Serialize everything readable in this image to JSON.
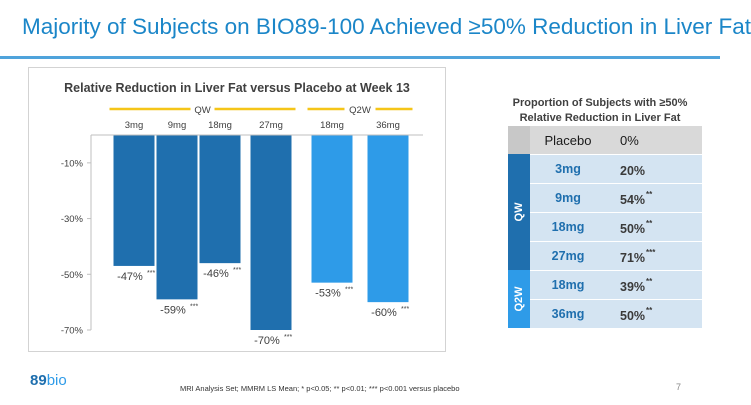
{
  "slide": {
    "title": "Majority of Subjects on BIO89-100 Achieved ≥50% Reduction in Liver Fat",
    "footnote": "MRI Analysis Set; MMRM LS Mean; * p<0.05; ** p<0.01; *** p<0.001 versus placebo",
    "page_number": "7",
    "logo_part1": "89",
    "logo_part2": "bio"
  },
  "colors": {
    "title": "#1b86c8",
    "qw": "#1f6fae",
    "q2w": "#2e9be8",
    "group_bar": "#f5c518",
    "table_row": "#d4e4f2"
  },
  "chart_data": {
    "type": "bar",
    "title": "Relative Reduction in Liver Fat versus Placebo at Week 13",
    "groups": [
      {
        "label": "QW",
        "categories": [
          "3mg",
          "9mg",
          "18mg",
          "27mg"
        ]
      },
      {
        "label": "Q2W",
        "categories": [
          "18mg",
          "36mg"
        ]
      }
    ],
    "categories": [
      "3mg",
      "9mg",
      "18mg",
      "27mg",
      "18mg",
      "36mg"
    ],
    "values": [
      -47,
      -59,
      -46,
      -70,
      -53,
      -60
    ],
    "value_labels": [
      "-47%",
      "-59%",
      "-46%",
      "-70%",
      "-53%",
      "-60%"
    ],
    "significance": [
      "***",
      "***",
      "***",
      "***",
      "***",
      "***"
    ],
    "bar_group": [
      "QW",
      "QW",
      "QW",
      "QW",
      "Q2W",
      "Q2W"
    ],
    "yticks": [
      -10,
      -30,
      -50,
      -70
    ],
    "ytick_labels": [
      "-10%",
      "-30%",
      "-50%",
      "-70%"
    ],
    "ylim": [
      -70,
      0
    ],
    "xaxis_position": "top",
    "grid": false
  },
  "table": {
    "title_line1": "Proportion of Subjects with ≥50%",
    "title_line2": "Relative Reduction in Liver Fat",
    "placebo": {
      "label": "Placebo",
      "value": "0%"
    },
    "groups": [
      {
        "label": "QW",
        "rows": [
          {
            "dose": "3mg",
            "value": "20%",
            "sig": ""
          },
          {
            "dose": "9mg",
            "value": "54%",
            "sig": "**"
          },
          {
            "dose": "18mg",
            "value": "50%",
            "sig": "**"
          },
          {
            "dose": "27mg",
            "value": "71%",
            "sig": "***"
          }
        ]
      },
      {
        "label": "Q2W",
        "rows": [
          {
            "dose": "18mg",
            "value": "39%",
            "sig": "**"
          },
          {
            "dose": "36mg",
            "value": "50%",
            "sig": "**"
          }
        ]
      }
    ]
  }
}
